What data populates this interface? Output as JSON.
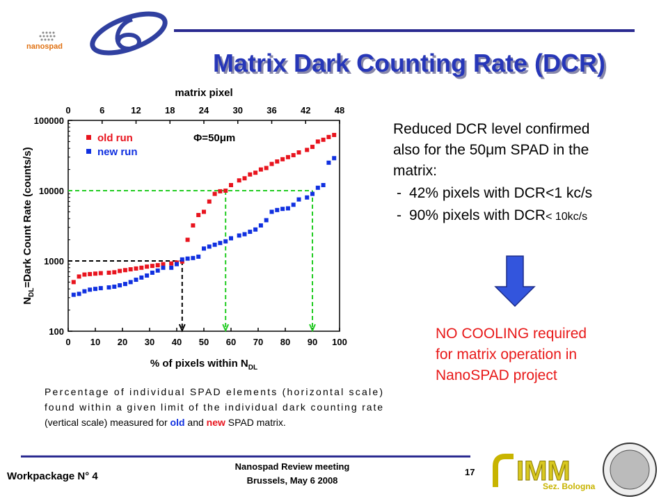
{
  "slide": {
    "title": "Matrix Dark Counting Rate (DCR)",
    "logo_text": "nanospad",
    "right_text": [
      "Reduced DCR level confirmed",
      "also for the 50μm SPAD in the",
      "matrix:"
    ],
    "bullets": [
      "42% pixels with DCR<1 kc/s",
      "90% pixels with DCR"
    ],
    "bullet_small": "< 10kc/s",
    "conclusion": [
      "NO COOLING required",
      "for matrix operation in",
      "NanoSPAD project"
    ],
    "caption": [
      "Percentage of individual SPAD elements (horizontal scale)",
      "found within a given limit of the individual dark counting rate",
      "(vertical scale) measured for ",
      "old",
      " and ",
      "new",
      " SPAD matrix."
    ],
    "footer_left": "Workpackage N° 4",
    "footer_center": [
      "Nanospad Review meeting",
      "Brussels, May 6 2008"
    ],
    "page_number": "17",
    "imm": "IMM",
    "imm_sub": "Sez. Bologna"
  },
  "chart_data": {
    "type": "scatter",
    "x2_label": "matrix pixel",
    "y_label": [
      "N",
      "DL",
      "=Dark Count Rate (counts/s)"
    ],
    "x_label": [
      "% of pixels within N",
      "DL"
    ],
    "annotation": "Φ=50μm",
    "yscale": "log",
    "xlim": [
      0,
      100
    ],
    "xticks": [
      0,
      10,
      20,
      30,
      40,
      50,
      60,
      70,
      80,
      90,
      100
    ],
    "x2lim": [
      0,
      48
    ],
    "x2ticks": [
      0,
      6,
      12,
      18,
      24,
      30,
      36,
      42,
      48
    ],
    "ylim": [
      100,
      100000
    ],
    "yticks": [
      100,
      1000,
      10000,
      100000
    ],
    "x": [
      2,
      4,
      6,
      8,
      10,
      12,
      15,
      17,
      19,
      21,
      23,
      25,
      27,
      29,
      31,
      33,
      35,
      38,
      40,
      42,
      44,
      46,
      48,
      50,
      52,
      54,
      56,
      58,
      60,
      63,
      65,
      67,
      69,
      71,
      73,
      75,
      77,
      79,
      81,
      83,
      85,
      88,
      90,
      92,
      94,
      96,
      98
    ],
    "series": [
      {
        "name": "old run",
        "color": "#e8141e",
        "values": [
          500,
          600,
          640,
          650,
          660,
          670,
          680,
          690,
          720,
          740,
          760,
          780,
          800,
          830,
          850,
          870,
          900,
          920,
          950,
          980,
          2000,
          3200,
          4500,
          5000,
          7000,
          9000,
          9800,
          10000,
          12000,
          14000,
          15000,
          17000,
          18000,
          20000,
          21000,
          24000,
          26000,
          28000,
          30000,
          32000,
          35000,
          38000,
          42000,
          50000,
          53000,
          58000,
          62000
        ]
      },
      {
        "name": "new run",
        "color": "#1030e0",
        "values": [
          330,
          340,
          370,
          390,
          400,
          410,
          420,
          430,
          450,
          470,
          500,
          540,
          580,
          620,
          680,
          730,
          800,
          800,
          900,
          1050,
          1080,
          1100,
          1150,
          1500,
          1600,
          1700,
          1800,
          1900,
          2100,
          2300,
          2400,
          2600,
          2800,
          3200,
          3800,
          5000,
          5300,
          5500,
          5600,
          6300,
          7500,
          8000,
          9000,
          11000,
          12000,
          25000,
          29000
        ]
      }
    ],
    "guides": [
      {
        "x": 42,
        "y": 1000,
        "color": "#000000"
      },
      {
        "x": 58,
        "y": 10000,
        "color": "#22cc22"
      },
      {
        "x": 90,
        "y": 10000,
        "color": "#22cc22"
      }
    ]
  }
}
